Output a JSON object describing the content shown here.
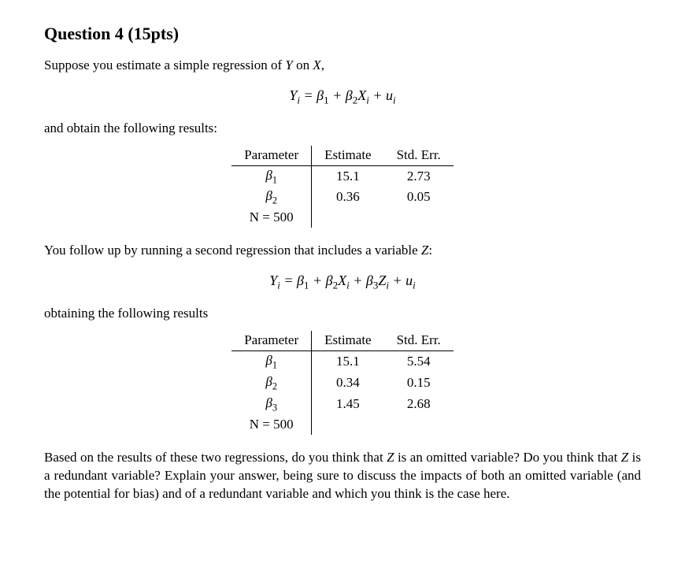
{
  "title": "Question 4 (15pts)",
  "intro": "Suppose you estimate a simple regression of Y on X,",
  "eq1_html": "Y<span class='sub'>i</span> = β<span class='sub rm'>1</span> + β<span class='sub rm'>2</span>X<span class='sub'>i</span> + u<span class='sub'>i</span>",
  "after_eq1": "and obtain the following results:",
  "table_headers": {
    "param": "Parameter",
    "est": "Estimate",
    "se": "Std. Err."
  },
  "table1": {
    "rows": [
      {
        "param_html": "<span class='beta'>β</span><span class='sub rm'>1</span>",
        "est": "15.1",
        "se": "2.73"
      },
      {
        "param_html": "<span class='beta'>β</span><span class='sub rm'>2</span>",
        "est": "0.36",
        "se": "0.05"
      }
    ],
    "nrow_html": "N = 500"
  },
  "follow_text": "You follow up by running a second regression that includes a variable Z:",
  "eq2_html": "Y<span class='sub'>i</span> = β<span class='sub rm'>1</span> + β<span class='sub rm'>2</span>X<span class='sub'>i</span> + β<span class='sub rm'>3</span>Z<span class='sub'>i</span> + u<span class='sub'>i</span>",
  "after_eq2": "obtaining the following results",
  "table2": {
    "rows": [
      {
        "param_html": "<span class='beta'>β</span><span class='sub rm'>1</span>",
        "est": "15.1",
        "se": "5.54"
      },
      {
        "param_html": "<span class='beta'>β</span><span class='sub rm'>2</span>",
        "est": "0.34",
        "se": "0.15"
      },
      {
        "param_html": "<span class='beta'>β</span><span class='sub rm'>3</span>",
        "est": "1.45",
        "se": "2.68"
      }
    ],
    "nrow_html": "N = 500"
  },
  "question_html": "Based on the results of these two regressions, do you think that <span class='it'>Z</span> is an omitted variable? Do you think that <span class='it'>Z</span> is a redundant variable? Explain your answer, being sure to discuss the impacts of both an omitted variable (and the potential for bias) and of a redundant variable and which you think is the case here."
}
